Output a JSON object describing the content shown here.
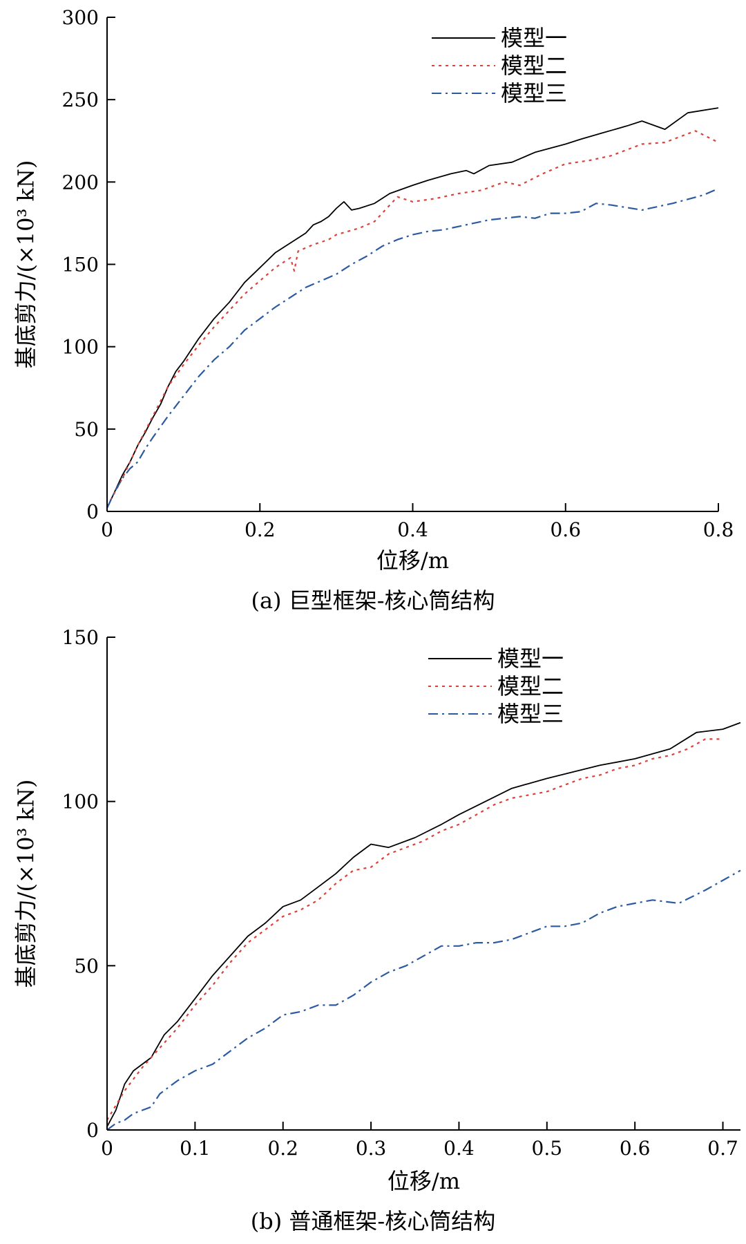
{
  "chart_data": [
    {
      "type": "line",
      "caption": "(a) 巨型框架-核心筒结构",
      "xlabel": "位移/m",
      "ylabel": "基底剪力/(×10³ kN)",
      "xlim": [
        0,
        0.8
      ],
      "ylim": [
        0,
        300
      ],
      "xticks": [
        0,
        0.2,
        0.4,
        0.6,
        0.8
      ],
      "xtick_labels": [
        "0",
        "0.2",
        "0.4",
        "0.6",
        "0.8"
      ],
      "yticks": [
        0,
        50,
        100,
        150,
        200,
        250,
        300
      ],
      "ytick_labels": [
        "0",
        "50",
        "100",
        "150",
        "200",
        "250",
        "300"
      ],
      "grid": false,
      "legend": "top-right",
      "series": [
        {
          "name": "模型一",
          "color": "#000000",
          "style": "solid",
          "x": [
            0,
            0.01,
            0.02,
            0.03,
            0.04,
            0.05,
            0.06,
            0.07,
            0.08,
            0.09,
            0.1,
            0.11,
            0.12,
            0.14,
            0.16,
            0.18,
            0.2,
            0.22,
            0.24,
            0.25,
            0.26,
            0.27,
            0.28,
            0.29,
            0.3,
            0.31,
            0.32,
            0.33,
            0.35,
            0.37,
            0.4,
            0.42,
            0.45,
            0.47,
            0.48,
            0.5,
            0.53,
            0.56,
            0.6,
            0.62,
            0.65,
            0.68,
            0.7,
            0.73,
            0.76,
            0.8
          ],
          "y": [
            2,
            12,
            22,
            30,
            40,
            48,
            57,
            65,
            76,
            85,
            91,
            98,
            105,
            117,
            127,
            139,
            148,
            157,
            163,
            166,
            169,
            174,
            176,
            179,
            184,
            188,
            183,
            184,
            187,
            193,
            198,
            201,
            205,
            207,
            205,
            210,
            212,
            218,
            223,
            226,
            230,
            234,
            237,
            232,
            242,
            245
          ]
        },
        {
          "name": "模型二",
          "color": "#d9423a",
          "style": "dotted",
          "x": [
            0,
            0.02,
            0.04,
            0.06,
            0.08,
            0.1,
            0.12,
            0.14,
            0.16,
            0.18,
            0.2,
            0.22,
            0.24,
            0.245,
            0.25,
            0.27,
            0.29,
            0.3,
            0.33,
            0.35,
            0.38,
            0.4,
            0.43,
            0.46,
            0.49,
            0.52,
            0.54,
            0.57,
            0.6,
            0.63,
            0.66,
            0.7,
            0.73,
            0.77,
            0.8
          ],
          "y": [
            3,
            20,
            40,
            58,
            76,
            89,
            101,
            112,
            122,
            132,
            140,
            148,
            154,
            146,
            158,
            162,
            165,
            168,
            172,
            176,
            191,
            188,
            190,
            193,
            195,
            200,
            198,
            205,
            211,
            213,
            216,
            223,
            224,
            231,
            224
          ]
        },
        {
          "name": "模型三",
          "color": "#2c5aa0",
          "style": "dashdot",
          "x": [
            0,
            0.01,
            0.02,
            0.03,
            0.04,
            0.05,
            0.06,
            0.08,
            0.1,
            0.12,
            0.14,
            0.16,
            0.18,
            0.2,
            0.22,
            0.24,
            0.26,
            0.28,
            0.3,
            0.32,
            0.34,
            0.36,
            0.38,
            0.4,
            0.42,
            0.44,
            0.46,
            0.48,
            0.5,
            0.52,
            0.54,
            0.56,
            0.58,
            0.6,
            0.62,
            0.64,
            0.66,
            0.7,
            0.74,
            0.78,
            0.8
          ],
          "y": [
            2,
            12,
            20,
            26,
            30,
            38,
            45,
            58,
            70,
            82,
            92,
            100,
            110,
            117,
            124,
            130,
            136,
            140,
            144,
            150,
            155,
            161,
            165,
            168,
            170,
            171,
            173,
            175,
            177,
            178,
            179,
            178,
            181,
            181,
            182,
            187,
            186,
            183,
            187,
            192,
            196
          ]
        }
      ]
    },
    {
      "type": "line",
      "caption": "(b) 普通框架-核心筒结构",
      "xlabel": "位移/m",
      "ylabel": "基底剪力/(×10³ kN)",
      "xlim": [
        0,
        0.72
      ],
      "ylim": [
        0,
        150
      ],
      "xticks": [
        0,
        0.1,
        0.2,
        0.3,
        0.4,
        0.5,
        0.6,
        0.7
      ],
      "xtick_labels": [
        "0",
        "0.1",
        "0.2",
        "0.3",
        "0.4",
        "0.5",
        "0.6",
        "0.7"
      ],
      "yticks": [
        0,
        50,
        100,
        150
      ],
      "ytick_labels": [
        "0",
        "50",
        "100",
        "150"
      ],
      "grid": false,
      "legend": "top-right",
      "series": [
        {
          "name": "模型一",
          "color": "#000000",
          "style": "solid",
          "x": [
            0,
            0.01,
            0.02,
            0.03,
            0.05,
            0.065,
            0.08,
            0.1,
            0.12,
            0.14,
            0.16,
            0.18,
            0.2,
            0.22,
            0.24,
            0.26,
            0.28,
            0.3,
            0.32,
            0.35,
            0.38,
            0.4,
            0.43,
            0.46,
            0.5,
            0.53,
            0.56,
            0.6,
            0.64,
            0.67,
            0.7,
            0.72
          ],
          "y": [
            1,
            6,
            14,
            18,
            22,
            29,
            33,
            40,
            47,
            53,
            59,
            63,
            68,
            70,
            74,
            78,
            83,
            87,
            86,
            89,
            93,
            96,
            100,
            104,
            107,
            109,
            111,
            113,
            116,
            121,
            122,
            124
          ]
        },
        {
          "name": "模型二",
          "color": "#d9423a",
          "style": "dotted",
          "x": [
            0,
            0.02,
            0.04,
            0.06,
            0.08,
            0.1,
            0.12,
            0.14,
            0.16,
            0.18,
            0.2,
            0.22,
            0.24,
            0.26,
            0.28,
            0.3,
            0.32,
            0.34,
            0.36,
            0.38,
            0.4,
            0.42,
            0.44,
            0.46,
            0.48,
            0.5,
            0.52,
            0.54,
            0.56,
            0.58,
            0.6,
            0.62,
            0.64,
            0.66,
            0.68,
            0.7
          ],
          "y": [
            3,
            12,
            19,
            25,
            31,
            38,
            44,
            51,
            57,
            61,
            65,
            67,
            70,
            75,
            79,
            80,
            84,
            86,
            88,
            91,
            93,
            96,
            99,
            101,
            102,
            103,
            105,
            107,
            108,
            110,
            111,
            113,
            114,
            116,
            119,
            119
          ]
        },
        {
          "name": "模型三",
          "color": "#2c5aa0",
          "style": "dashdot",
          "x": [
            0,
            0.01,
            0.02,
            0.03,
            0.04,
            0.05,
            0.06,
            0.08,
            0.1,
            0.12,
            0.14,
            0.16,
            0.18,
            0.2,
            0.22,
            0.24,
            0.26,
            0.28,
            0.3,
            0.32,
            0.34,
            0.36,
            0.38,
            0.4,
            0.42,
            0.44,
            0.46,
            0.48,
            0.5,
            0.52,
            0.54,
            0.56,
            0.58,
            0.6,
            0.62,
            0.65,
            0.68,
            0.72
          ],
          "y": [
            0,
            2,
            3,
            5,
            6,
            7,
            11,
            15,
            18,
            20,
            24,
            28,
            31,
            35,
            36,
            38,
            38,
            41,
            45,
            48,
            50,
            53,
            56,
            56,
            57,
            57,
            58,
            60,
            62,
            62,
            63,
            66,
            68,
            69,
            70,
            69,
            73,
            79
          ]
        }
      ]
    }
  ]
}
